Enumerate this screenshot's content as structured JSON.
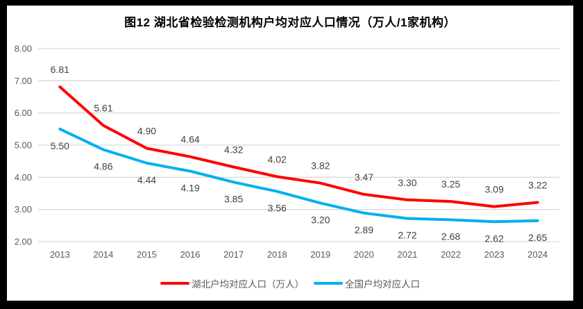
{
  "chart_data": {
    "type": "line",
    "title": "图12 湖北省检验检测机构户均对应人口情况（万人/1家机构）",
    "categories": [
      "2013",
      "2014",
      "2015",
      "2016",
      "2017",
      "2018",
      "2019",
      "2020",
      "2021",
      "2022",
      "2023",
      "2024"
    ],
    "series": [
      {
        "name": "湖北户均对应人口（万人）",
        "color": "#FF0000",
        "values": [
          6.81,
          5.61,
          4.9,
          4.64,
          4.32,
          4.02,
          3.82,
          3.47,
          3.3,
          3.25,
          3.09,
          3.22
        ],
        "label_position": "above"
      },
      {
        "name": "全国户均对应人口",
        "color": "#00B0F0",
        "values": [
          5.5,
          4.86,
          4.44,
          4.19,
          3.85,
          3.56,
          3.2,
          2.89,
          2.72,
          2.68,
          2.62,
          2.65
        ],
        "label_position": "below"
      }
    ],
    "y_axis": {
      "min": 2,
      "max": 8,
      "step": 1,
      "decimals": 2,
      "ticks": [
        "8.00",
        "7.00",
        "6.00",
        "5.00",
        "4.00",
        "3.00",
        "2.00"
      ]
    },
    "x_axis": {
      "label": ""
    },
    "grid": true,
    "legend_position": "bottom",
    "colors": {
      "grid_line": "#D9D9D9",
      "axis_text": "#595959",
      "data_label_text": "#404040",
      "title_text": "#000000",
      "frame": "#000000",
      "background": "#FFFFFF"
    }
  }
}
